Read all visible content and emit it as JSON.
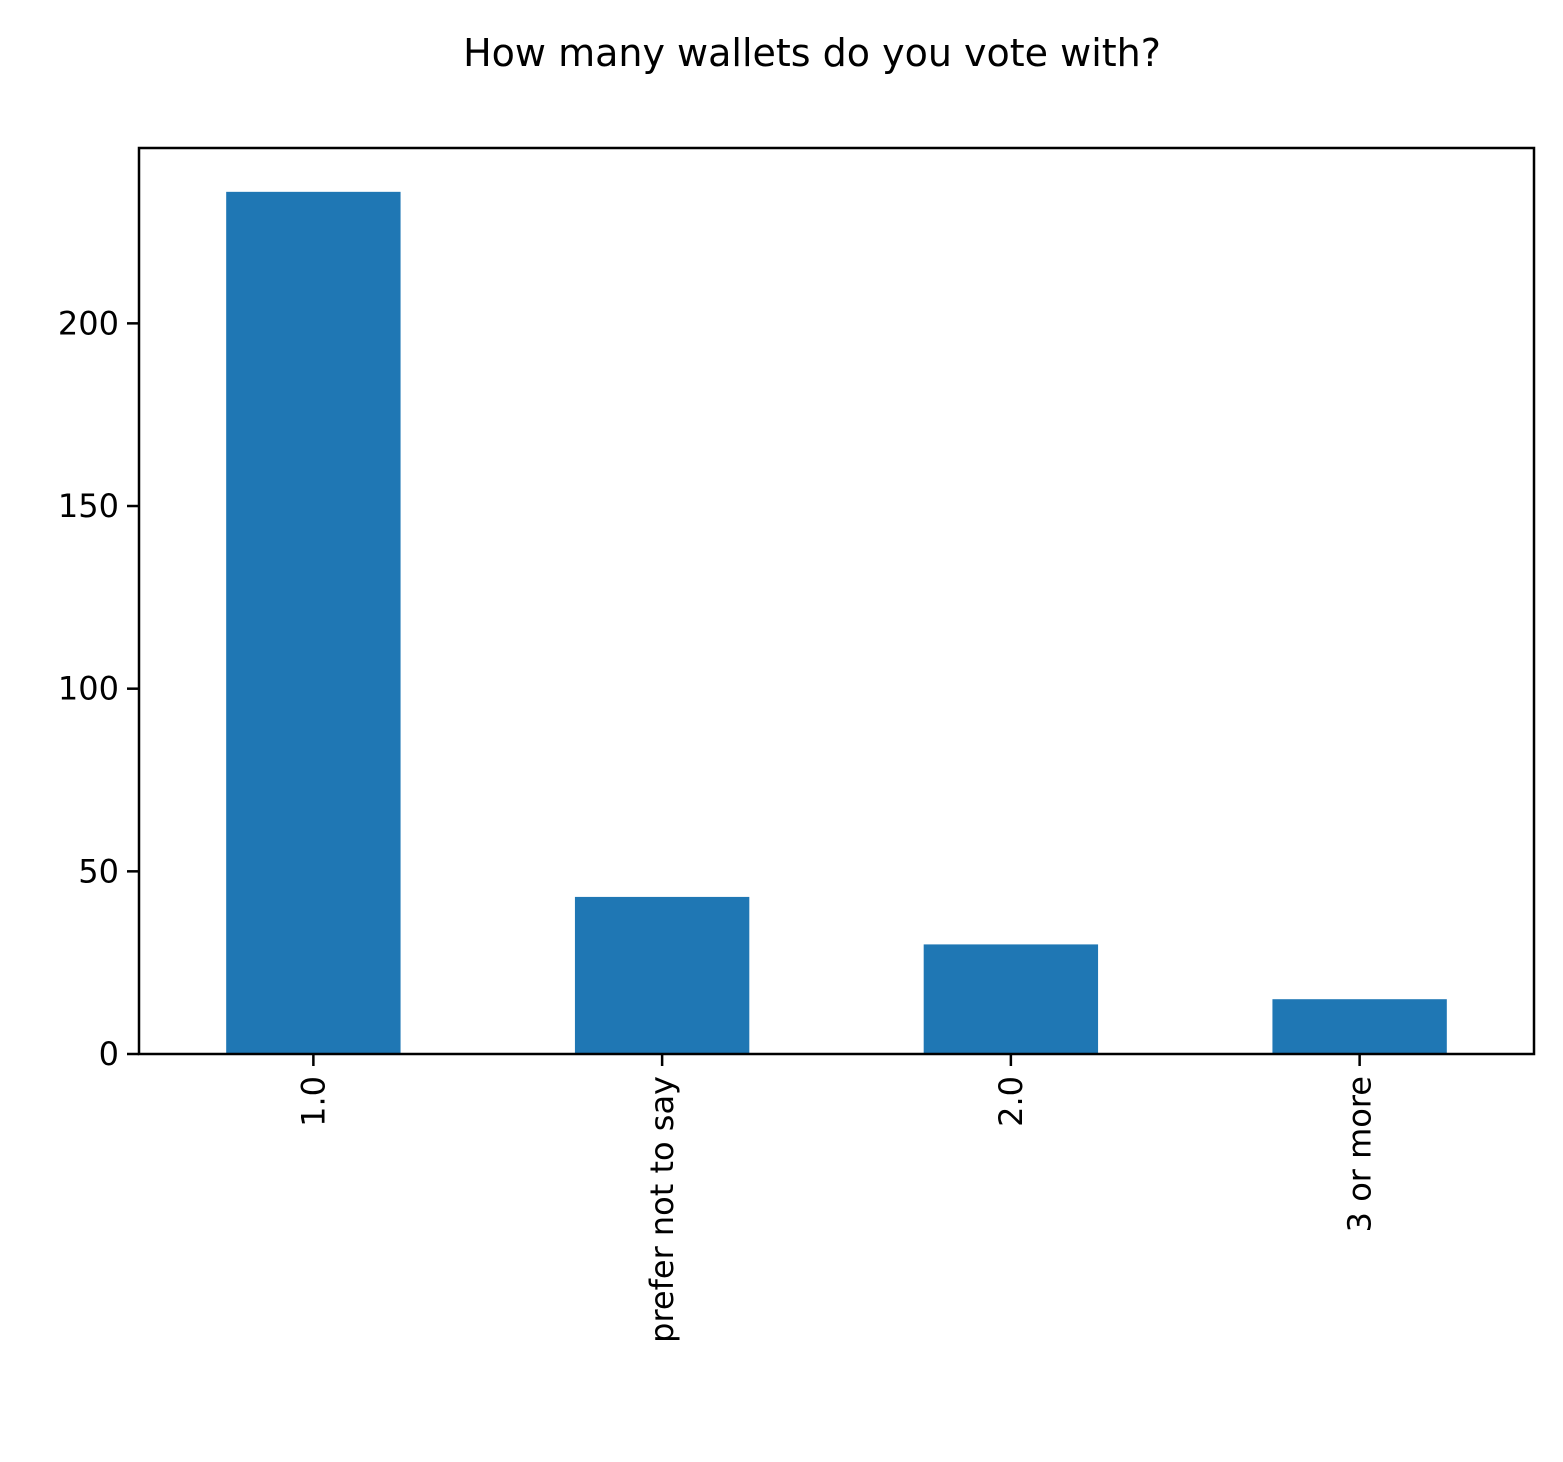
{
  "chart_data": {
    "type": "bar",
    "title": "How many wallets do you vote with?",
    "xlabel": "",
    "ylabel": "",
    "categories": [
      "1.0",
      "prefer not to say",
      "2.0",
      "3 or more"
    ],
    "values": [
      236,
      43,
      30,
      15
    ],
    "ylim": [
      0,
      248
    ],
    "yticks": [
      0,
      50,
      100,
      150,
      200
    ],
    "bar_color": "#1f77b4",
    "grid": false,
    "legend": "none",
    "xtick_rotation": "vertical"
  }
}
